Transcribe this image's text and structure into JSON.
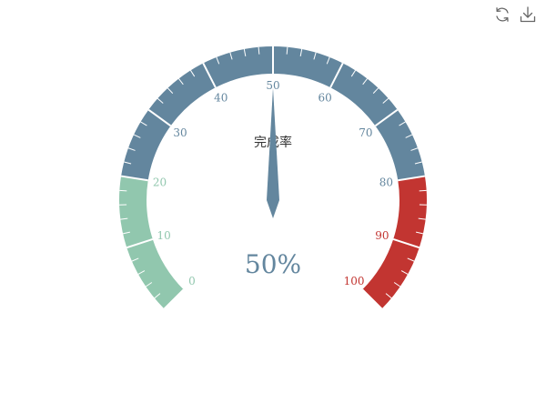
{
  "chart_data": {
    "type": "gauge",
    "title": "完成率",
    "value": 50,
    "min": 0,
    "max": 100,
    "detail_text": "50%",
    "split_number": 10,
    "tick_labels": [
      "0",
      "10",
      "20",
      "30",
      "40",
      "50",
      "60",
      "70",
      "80",
      "90",
      "100"
    ],
    "bands": [
      {
        "to_fraction": 0.2,
        "color": "#91c7ae"
      },
      {
        "to_fraction": 0.8,
        "color": "#63869e"
      },
      {
        "to_fraction": 1.0,
        "color": "#c23531"
      }
    ],
    "pointer_color": "#63869e",
    "start_angle_deg": 225,
    "end_angle_deg": -45
  },
  "toolbox": {
    "icons": [
      "refresh-icon",
      "download-icon"
    ],
    "icon_color": "#666666"
  }
}
